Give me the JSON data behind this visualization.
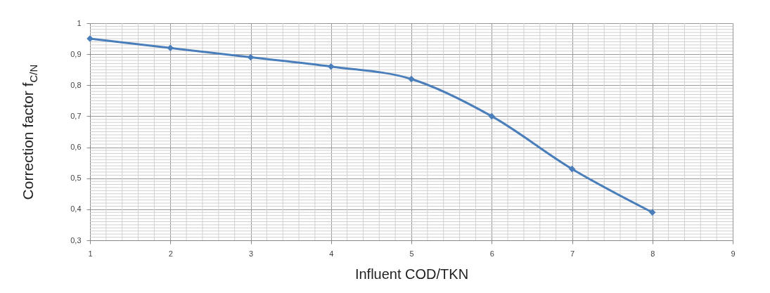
{
  "chart_data": {
    "type": "line",
    "xlabel": "Influent COD/TKN",
    "ylabel": "Correction factor f$_{C/N}$",
    "x": [
      1,
      2,
      3,
      4,
      5,
      6,
      7,
      8
    ],
    "series": [
      {
        "color": "#4a7ebb",
        "values": [
          0.95,
          0.92,
          0.89,
          0.86,
          0.82,
          0.7,
          0.53,
          0.39
        ]
      }
    ],
    "xlim": [
      1,
      9
    ],
    "xticks": [
      1,
      2,
      3,
      4,
      5,
      6,
      7,
      8,
      9
    ],
    "ylim": [
      0.3,
      1
    ],
    "yticks": [
      {
        "value": 0.3,
        "label": "0,3"
      },
      {
        "value": 0.4,
        "label": "0,4"
      },
      {
        "value": 0.5,
        "label": "0,5"
      },
      {
        "value": 0.6,
        "label": "0,6"
      },
      {
        "value": 0.7,
        "label": "0,7"
      },
      {
        "value": 0.8,
        "label": "0,8"
      },
      {
        "value": 0.9,
        "label": "0,9"
      },
      {
        "value": 1,
        "label": "1"
      }
    ],
    "grid": true,
    "marker": "diamond",
    "line_style": "solid"
  }
}
